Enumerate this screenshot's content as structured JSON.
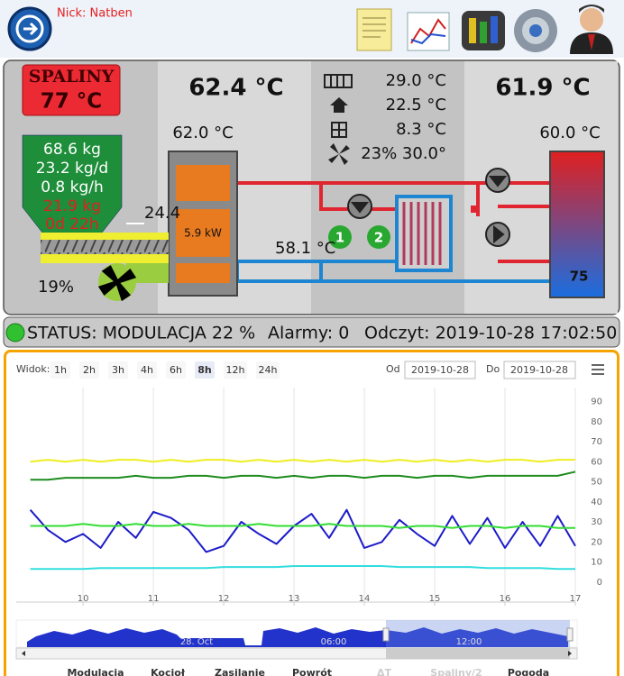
{
  "header": {
    "nick": "Nick: Natben"
  },
  "boiler": {
    "exhaust_label": "SPALINY",
    "exhaust_temp": "77 °C",
    "boiler_temp": "62.4 °C",
    "readings": [
      "29.0 °C",
      "22.5 °C",
      "8.3 °C",
      "23% 30.0°"
    ],
    "tank_temp": "61.9 °C",
    "boiler_out_temp": "62.0 °C",
    "tank_top_temp": "60.0 °C",
    "hopper": [
      "68.6 kg",
      "23.2 kg/d",
      "0.8 kg/h",
      "21.9 kg",
      "0d 22h"
    ],
    "feeder": "24.4",
    "power": "5.9 kW",
    "return_temp": "58.1 °C",
    "fan": "19%",
    "tank_level": "75",
    "pumps": [
      "1",
      "2"
    ]
  },
  "status": {
    "state": "STATUS: MODULACJA 22 %",
    "alarms": "Alarmy: 0",
    "reading": "Odczyt: 2019-10-28 17:02:50"
  },
  "controls": {
    "view_label": "Widok:",
    "ranges": [
      "1h",
      "2h",
      "3h",
      "4h",
      "6h",
      "8h",
      "12h",
      "24h"
    ],
    "active_range": "8h",
    "from_label": "Od",
    "from": "2019-10-28",
    "to_label": "Do",
    "to": "2019-10-28"
  },
  "chart_data": {
    "type": "line",
    "x": [
      9.25,
      9.5,
      9.75,
      10,
      10.25,
      10.5,
      10.75,
      11,
      11.25,
      11.5,
      11.75,
      12,
      12.25,
      12.5,
      12.75,
      13,
      13.25,
      13.5,
      13.75,
      14,
      14.25,
      14.5,
      14.75,
      15,
      15.25,
      15.5,
      15.75,
      16,
      16.25,
      16.5,
      16.75,
      17
    ],
    "xlim": [
      9.05,
      17
    ],
    "xticks": [
      10,
      11,
      12,
      13,
      14,
      15,
      16,
      17
    ],
    "ylim": [
      -10,
      97
    ],
    "yticks": [
      0,
      10,
      20,
      30,
      40,
      50,
      60,
      70,
      80,
      90
    ],
    "grid": "x",
    "series": [
      {
        "name": "Modulacja",
        "color": "#1c1cc8",
        "values": [
          36,
          26,
          20,
          24,
          17,
          30,
          22,
          35,
          32,
          26,
          15,
          18,
          30,
          24,
          19,
          28,
          34,
          22,
          36,
          17,
          20,
          31,
          24,
          18,
          33,
          19,
          32,
          17,
          30,
          18,
          33,
          18
        ]
      },
      {
        "name": "Kocioł",
        "color": "#eeee22",
        "values": [
          60,
          61,
          60,
          61,
          60,
          61,
          61,
          60,
          61,
          60,
          61,
          61,
          60,
          61,
          60,
          61,
          60,
          61,
          60,
          61,
          60,
          61,
          60,
          61,
          60,
          61,
          60,
          61,
          61,
          60,
          61,
          61
        ]
      },
      {
        "name": "Zasilanie",
        "color": "#1e8c1e",
        "values": [
          51,
          51,
          52,
          52,
          52,
          52,
          53,
          52,
          52,
          53,
          53,
          52,
          53,
          53,
          52,
          53,
          52,
          53,
          53,
          52,
          53,
          53,
          52,
          53,
          53,
          52,
          53,
          53,
          53,
          53,
          53,
          55
        ]
      },
      {
        "name": "Powrót",
        "color": "#33dd33",
        "values": [
          28,
          28,
          28,
          29,
          28,
          28,
          29,
          28,
          28,
          29,
          28,
          28,
          28,
          29,
          28,
          28,
          28,
          29,
          28,
          28,
          28,
          27,
          28,
          28,
          27,
          28,
          28,
          27,
          28,
          28,
          27,
          27
        ]
      },
      {
        "name": "ΔT",
        "visible": false
      },
      {
        "name": "Spaliny/2",
        "visible": false
      },
      {
        "name": "Pogoda",
        "color": "#33dddd",
        "values": [
          6.5,
          6.5,
          6.5,
          6.5,
          7,
          7,
          7,
          7,
          7,
          7,
          7,
          7.5,
          7.5,
          7.5,
          7.5,
          8,
          8,
          8,
          8,
          8,
          8,
          7.5,
          7.5,
          7.5,
          7.5,
          7.5,
          7,
          7,
          7,
          7,
          6.5,
          6.5
        ]
      }
    ],
    "navigator_labels": [
      "28. Oct",
      "06:00",
      "12:00"
    ]
  }
}
